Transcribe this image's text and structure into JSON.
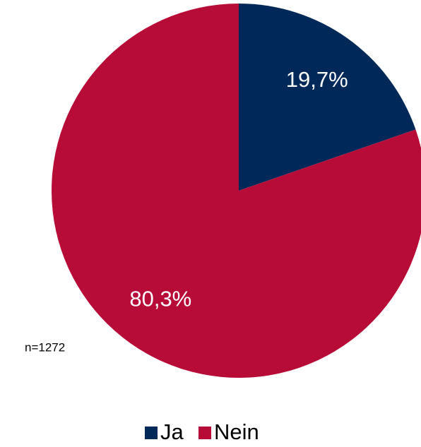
{
  "chart_data": {
    "type": "pie",
    "categories": [
      "Ja",
      "Nein"
    ],
    "values": [
      19.7,
      80.3
    ],
    "value_labels": [
      "19,7%",
      "80,3%"
    ],
    "colors": [
      "#00295a",
      "#b80c38"
    ],
    "annotation": "n=1272",
    "legend": "bottom"
  }
}
